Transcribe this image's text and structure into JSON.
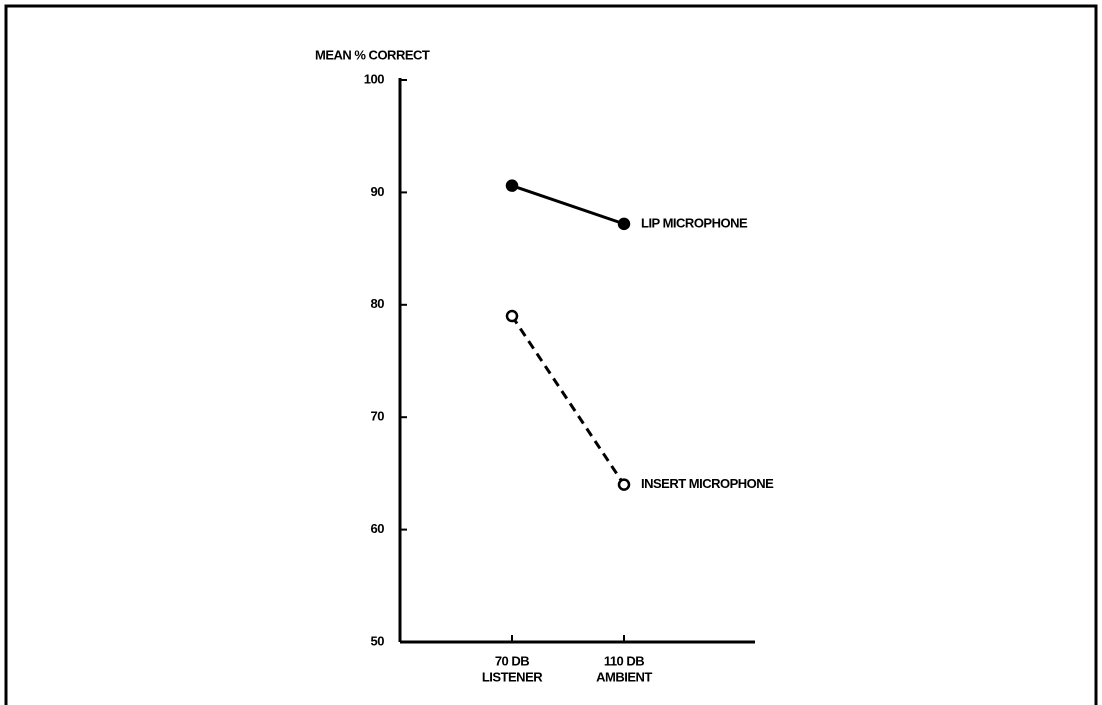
{
  "chart_data": {
    "type": "line",
    "y_label": "MEAN % CORRECT",
    "categories": [
      [
        "70 DB",
        "LISTENER"
      ],
      [
        "110 DB",
        "AMBIENT"
      ]
    ],
    "series": [
      {
        "name": "LIP MICROPHONE",
        "color": "#000000",
        "style": "solid",
        "marker": "filled",
        "values": [
          90.6,
          87.2
        ]
      },
      {
        "name": "INSERT MICROPHONE",
        "color": "#000000",
        "style": "dashed",
        "marker": "open",
        "values": [
          79,
          64
        ]
      }
    ],
    "ylim": [
      50,
      100
    ],
    "yticks": [
      50,
      60,
      70,
      80,
      90,
      100
    ],
    "grid": false
  }
}
